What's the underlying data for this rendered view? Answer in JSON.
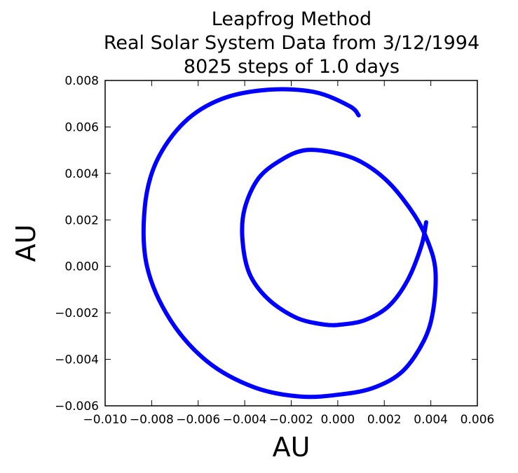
{
  "chart_data": {
    "type": "line",
    "title_lines": [
      "Leapfrog Method",
      "Real Solar System Data from 3/12/1994",
      "8025 steps of 1.0 days"
    ],
    "xlabel": "AU",
    "ylabel": "AU",
    "xlim": [
      -0.01,
      0.006
    ],
    "ylim": [
      -0.006,
      0.008
    ],
    "xticks": [
      -0.01,
      -0.008,
      -0.006,
      -0.004,
      -0.002,
      0.0,
      0.002,
      0.004,
      0.006
    ],
    "yticks": [
      -0.006,
      -0.004,
      -0.002,
      0.0,
      0.002,
      0.004,
      0.006,
      0.008
    ],
    "xtick_labels": [
      "−0.010",
      "−0.008",
      "−0.006",
      "−0.004",
      "−0.002",
      "0.000",
      "0.002",
      "0.004",
      "0.006"
    ],
    "ytick_labels": [
      "−0.006",
      "−0.004",
      "−0.002",
      "0.000",
      "0.002",
      "0.004",
      "0.006",
      "0.008"
    ],
    "grid": false,
    "series": [
      {
        "color": "#0000ff",
        "x": [
          0.0038,
          0.0036,
          0.003,
          0.0022,
          0.0012,
          0.0002,
          -0.0006,
          -0.0018,
          -0.003,
          -0.0038,
          -0.0041,
          -0.004,
          -0.0034,
          -0.0024,
          -0.0014,
          -0.0002,
          0.001,
          0.0022,
          0.0033,
          0.0039,
          0.0042,
          0.0041,
          0.0037,
          0.0028,
          0.0016,
          0.0002,
          -0.0016,
          -0.0036,
          -0.0056,
          -0.0072,
          -0.0082,
          -0.0083,
          -0.0078,
          -0.0066,
          -0.005,
          -0.003,
          -0.001,
          0.0005,
          0.0009
        ],
        "y": [
          0.0019,
          0.0009,
          -0.0006,
          -0.0017,
          -0.0023,
          -0.0025,
          -0.0025,
          -0.0022,
          -0.0014,
          -0.0003,
          0.0012,
          0.0025,
          0.0038,
          0.0046,
          0.005,
          0.0049,
          0.0045,
          0.0036,
          0.0022,
          0.001,
          -0.0002,
          -0.0019,
          -0.0032,
          -0.0045,
          -0.0052,
          -0.0055,
          -0.0056,
          -0.0052,
          -0.0041,
          -0.0023,
          0.0,
          0.0025,
          0.0045,
          0.0062,
          0.0072,
          0.0076,
          0.0075,
          0.0069,
          0.0065
        ]
      }
    ]
  }
}
